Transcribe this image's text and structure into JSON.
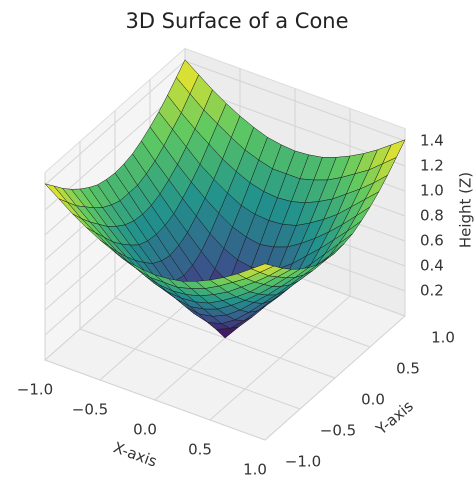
{
  "chart_data": {
    "type": "surface",
    "title": "3D Surface of a Cone",
    "xlabel": "X-axis",
    "ylabel": "Y-axis",
    "zlabel": "Height (Z)",
    "colormap": "viridis",
    "x": [
      -1,
      -0.875,
      -0.75,
      -0.625,
      -0.5,
      -0.375,
      -0.25,
      -0.125,
      0,
      0.125,
      0.25,
      0.375,
      0.5,
      0.625,
      0.75,
      0.875,
      1
    ],
    "y": [
      -1,
      -0.875,
      -0.75,
      -0.625,
      -0.5,
      -0.375,
      -0.25,
      -0.125,
      0,
      0.125,
      0.25,
      0.375,
      0.5,
      0.625,
      0.75,
      0.875,
      1
    ],
    "z": [
      [
        1.41,
        1.33,
        1.25,
        1.18,
        1.12,
        1.07,
        1.03,
        1.01,
        1,
        1.01,
        1.03,
        1.07,
        1.12,
        1.18,
        1.25,
        1.33,
        1.41
      ],
      [
        1.33,
        1.24,
        1.15,
        1.08,
        1.01,
        0.95,
        0.91,
        0.88,
        0.88,
        0.88,
        0.91,
        0.95,
        1.01,
        1.08,
        1.15,
        1.24,
        1.33
      ],
      [
        1.25,
        1.15,
        1.06,
        0.98,
        0.9,
        0.84,
        0.79,
        0.76,
        0.75,
        0.76,
        0.79,
        0.84,
        0.9,
        0.98,
        1.06,
        1.15,
        1.25
      ],
      [
        1.18,
        1.08,
        0.98,
        0.88,
        0.8,
        0.73,
        0.67,
        0.64,
        0.63,
        0.64,
        0.67,
        0.73,
        0.8,
        0.88,
        0.98,
        1.08,
        1.18
      ],
      [
        1.12,
        1.01,
        0.9,
        0.8,
        0.71,
        0.63,
        0.56,
        0.52,
        0.5,
        0.52,
        0.56,
        0.63,
        0.71,
        0.8,
        0.9,
        1.01,
        1.12
      ],
      [
        1.07,
        0.95,
        0.84,
        0.73,
        0.63,
        0.53,
        0.45,
        0.4,
        0.38,
        0.4,
        0.45,
        0.53,
        0.63,
        0.73,
        0.84,
        0.95,
        1.07
      ],
      [
        1.03,
        0.91,
        0.79,
        0.67,
        0.56,
        0.45,
        0.35,
        0.28,
        0.25,
        0.28,
        0.35,
        0.45,
        0.56,
        0.67,
        0.79,
        0.91,
        1.03
      ],
      [
        1.01,
        0.88,
        0.76,
        0.64,
        0.52,
        0.4,
        0.28,
        0.18,
        0.13,
        0.18,
        0.28,
        0.4,
        0.52,
        0.64,
        0.76,
        0.88,
        1.01
      ],
      [
        1,
        0.88,
        0.75,
        0.63,
        0.5,
        0.38,
        0.25,
        0.13,
        0,
        0.13,
        0.25,
        0.38,
        0.5,
        0.63,
        0.75,
        0.88,
        1
      ],
      [
        1.01,
        0.88,
        0.76,
        0.64,
        0.52,
        0.4,
        0.28,
        0.18,
        0.13,
        0.18,
        0.28,
        0.4,
        0.52,
        0.64,
        0.76,
        0.88,
        1.01
      ],
      [
        1.03,
        0.91,
        0.79,
        0.67,
        0.56,
        0.45,
        0.35,
        0.28,
        0.25,
        0.28,
        0.35,
        0.45,
        0.56,
        0.67,
        0.79,
        0.91,
        1.03
      ],
      [
        1.07,
        0.95,
        0.84,
        0.73,
        0.63,
        0.53,
        0.45,
        0.4,
        0.38,
        0.4,
        0.45,
        0.53,
        0.63,
        0.73,
        0.84,
        0.95,
        1.07
      ],
      [
        1.12,
        1.01,
        0.9,
        0.8,
        0.71,
        0.63,
        0.56,
        0.52,
        0.5,
        0.52,
        0.56,
        0.63,
        0.71,
        0.8,
        0.9,
        1.01,
        1.12
      ],
      [
        1.18,
        1.08,
        0.98,
        0.88,
        0.8,
        0.73,
        0.67,
        0.64,
        0.63,
        0.64,
        0.67,
        0.73,
        0.8,
        0.88,
        0.98,
        1.08,
        1.18
      ],
      [
        1.25,
        1.15,
        1.06,
        0.98,
        0.9,
        0.84,
        0.79,
        0.76,
        0.75,
        0.76,
        0.79,
        0.84,
        0.9,
        0.98,
        1.06,
        1.15,
        1.25
      ],
      [
        1.33,
        1.24,
        1.15,
        1.08,
        1.01,
        0.95,
        0.91,
        0.88,
        0.88,
        0.88,
        0.91,
        0.95,
        1.01,
        1.08,
        1.15,
        1.24,
        1.33
      ],
      [
        1.41,
        1.33,
        1.25,
        1.18,
        1.12,
        1.07,
        1.03,
        1.01,
        1,
        1.01,
        1.03,
        1.07,
        1.12,
        1.18,
        1.25,
        1.33,
        1.41
      ]
    ],
    "xlim": [
      -1,
      1
    ],
    "ylim": [
      -1,
      1
    ],
    "zlim": [
      0,
      1.5
    ],
    "xticks": [
      {
        "value": -1,
        "label": "−1.0"
      },
      {
        "value": -0.5,
        "label": "−0.5"
      },
      {
        "value": 0,
        "label": "0.0"
      },
      {
        "value": 0.5,
        "label": "0.5"
      },
      {
        "value": 1,
        "label": "1.0"
      }
    ],
    "yticks": [
      {
        "value": -1,
        "label": "−1.0"
      },
      {
        "value": -0.5,
        "label": "−0.5"
      },
      {
        "value": 0,
        "label": "0.0"
      },
      {
        "value": 0.5,
        "label": "0.5"
      },
      {
        "value": 1,
        "label": "1.0"
      }
    ],
    "zticks": [
      0.2,
      0.4,
      0.6,
      0.8,
      {
        "value": 1,
        "label": "1.0"
      },
      1.2,
      1.4
    ],
    "grid": true
  }
}
